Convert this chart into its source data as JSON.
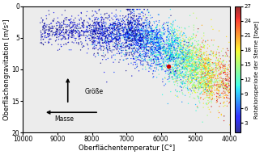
{
  "xlabel": "Oberflächentemperatur [C°]",
  "ylabel": "Oberflächengravitation [m/s²]",
  "colorbar_label": "Rotationsperiode der Sterne [tage]",
  "xlim": [
    10000,
    4000
  ],
  "ylim": [
    20,
    0
  ],
  "yticks": [
    0,
    5,
    10,
    15,
    20
  ],
  "xticks": [
    10000,
    9000,
    8000,
    7000,
    6000,
    5000,
    4000
  ],
  "colorbar_ticks": [
    3,
    6,
    9,
    12,
    15,
    18,
    21,
    24,
    27
  ],
  "cmap": "jet",
  "vmin": 1,
  "vmax": 27,
  "seed": 42,
  "arrow_gravity_label": "Größe",
  "arrow_mass_label": "Masse",
  "sun_x": 5778,
  "sun_y": 9.5,
  "sun_color": "#cc0000"
}
